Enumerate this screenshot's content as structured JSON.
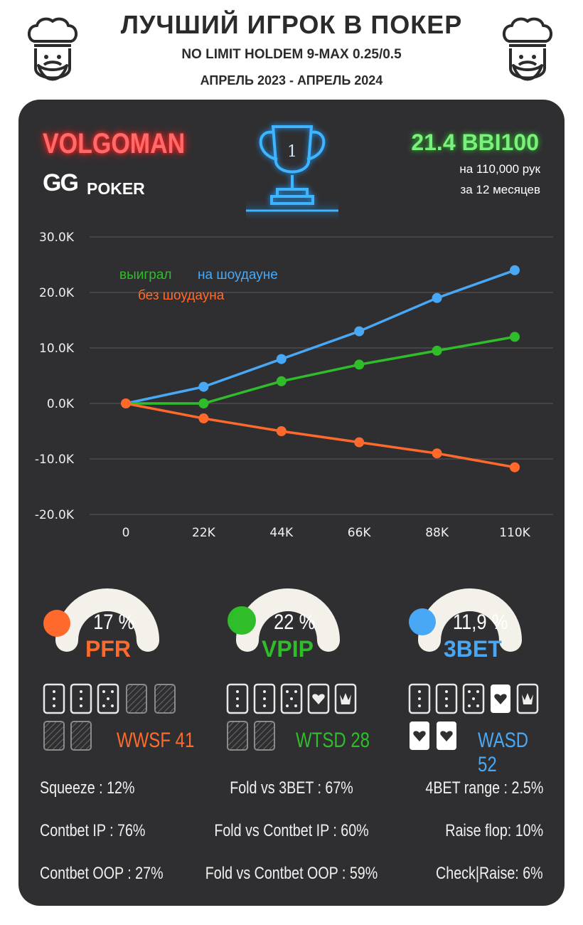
{
  "header": {
    "title": "ЛУЧШИЙ ИГРОК В ПОКЕР",
    "subtitle": "NO LIMIT HOLDEM 9-MAX 0.25/0.5",
    "dates": "АПРЕЛЬ 2023 - АПРЕЛЬ 2024"
  },
  "player": {
    "name": "VOLGOMAN",
    "room_gg": "GG",
    "room_poker": "POKER",
    "rank": "1"
  },
  "summary": {
    "winrate": "21.4 BBI100",
    "hands": "на 110,000 рук",
    "period": "за  12 месяцев"
  },
  "colors": {
    "green": "#2fbd2a",
    "blue": "#49a8f5",
    "orange": "#ff6a2c",
    "panel": "#2f2f31"
  },
  "chart_data": {
    "type": "line",
    "x": [
      "0",
      "22K",
      "44K",
      "66K",
      "88K",
      "110K"
    ],
    "y_ticks": [
      "30.0K",
      "20.0K",
      "10.0K",
      "0.0K",
      "-10.0K",
      "-20.0K"
    ],
    "ylim": [
      -20000,
      30000
    ],
    "legend_green": "выиграл",
    "legend_blue": "на шоудауне",
    "legend_orange": "без шоудауна",
    "series": [
      {
        "name": "на шоудауне",
        "color": "#49a8f5",
        "values": [
          0,
          3000,
          8000,
          13000,
          19000,
          24000
        ]
      },
      {
        "name": "выиграл",
        "color": "#2fbd2a",
        "values": [
          0,
          0,
          4000,
          7000,
          9500,
          12000
        ]
      },
      {
        "name": "без шоудауна",
        "color": "#ff6a2c",
        "values": [
          0,
          -2700,
          -5000,
          -7000,
          -9000,
          -11500
        ]
      }
    ]
  },
  "gauges": [
    {
      "value": "17 %",
      "label": "PFR",
      "color": "#ff6a2c",
      "level": 0.17
    },
    {
      "value": "22 %",
      "label": "VPIP",
      "color": "#2fbd2a",
      "level": 0.22
    },
    {
      "value": "11,9 %",
      "label": "3BET",
      "color": "#49a8f5",
      "level": 0.119
    }
  ],
  "showdown": {
    "wwsf": "WWSF 41",
    "wtsd": "WTSD 28",
    "wasd": "WASD 52"
  },
  "stats": {
    "squeeze": "Squeeze : 12%",
    "fold_3bet": "Fold vs 3BET : 67%",
    "range_4bet": "4BET range : 2.5%",
    "contbet_ip": "Contbet IP : 76%",
    "fold_cb_ip": "Fold vs Contbet IP : 60%",
    "raise_flop": "Raise flop: 10%",
    "contbet_oop": "Contbet OOP : 27%",
    "fold_cb_oop": "Fold vs Contbet OOP : 59%",
    "check_raise": "Check|Raise: 6%"
  }
}
